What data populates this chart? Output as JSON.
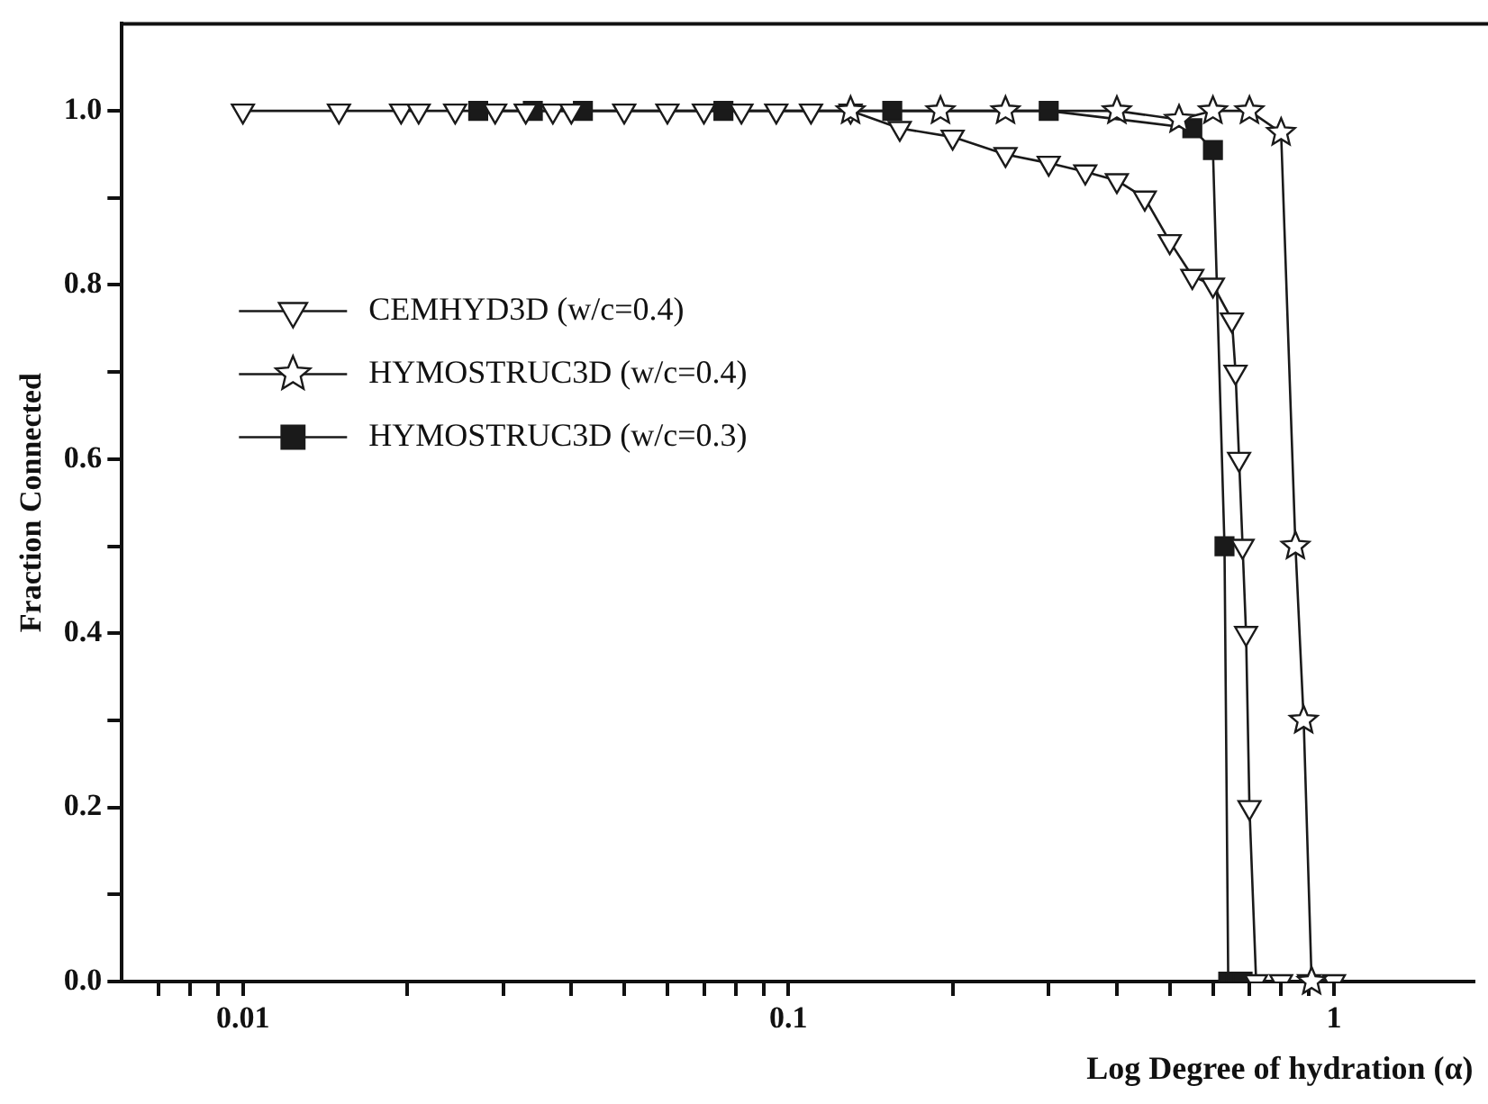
{
  "chart_data": {
    "type": "line",
    "xlabel": "Log Degree of hydration (α)",
    "ylabel": "Fraction Connected",
    "log": "x",
    "grid": false,
    "legend": "left",
    "line_style": "solid",
    "xlim": [
      0.006,
      1.8
    ],
    "ylim": [
      0,
      1.1
    ],
    "xticks": [
      {
        "value": 0.007,
        "label": null
      },
      {
        "value": 0.008,
        "label": null
      },
      {
        "value": 0.009,
        "label": null
      },
      0.01,
      {
        "value": 0.02,
        "label": null
      },
      {
        "value": 0.03,
        "label": null
      },
      {
        "value": 0.04,
        "label": null
      },
      {
        "value": 0.05,
        "label": null
      },
      {
        "value": 0.06,
        "label": null
      },
      {
        "value": 0.07,
        "label": null
      },
      {
        "value": 0.08,
        "label": null
      },
      {
        "value": 0.09,
        "label": null
      },
      0.1,
      {
        "value": 0.2,
        "label": null
      },
      {
        "value": 0.3,
        "label": null
      },
      {
        "value": 0.4,
        "label": null
      },
      {
        "value": 0.5,
        "label": null
      },
      {
        "value": 0.6,
        "label": null
      },
      {
        "value": 0.7,
        "label": null
      },
      {
        "value": 0.8,
        "label": null
      },
      {
        "value": 0.9,
        "label": null
      },
      1
    ],
    "yticks": [
      {
        "value": 0,
        "label": "0.0"
      },
      {
        "value": 0.1,
        "label": null
      },
      0.2,
      {
        "value": 0.3,
        "label": null
      },
      0.4,
      {
        "value": 0.5,
        "label": null
      },
      0.6,
      {
        "value": 0.7,
        "label": null
      },
      0.8,
      {
        "value": 0.9,
        "label": null
      },
      {
        "value": 1,
        "label": "1.0"
      }
    ],
    "series": [
      {
        "name": "CEMHYD3D (w/c=0.4)",
        "color": "#1a1a1a",
        "marker": "triangle",
        "x": [
          0.01,
          0.015,
          0.0195,
          0.021,
          0.0245,
          0.029,
          0.033,
          0.037,
          0.04,
          0.05,
          0.06,
          0.07,
          0.082,
          0.095,
          0.11,
          0.13,
          0.16,
          0.2,
          0.25,
          0.3,
          0.35,
          0.4,
          0.45,
          0.5,
          0.55,
          0.6,
          0.65,
          0.66,
          0.67,
          0.68,
          0.69,
          0.7,
          0.72,
          0.8,
          0.9,
          1.0
        ],
        "values": [
          1,
          1,
          1,
          1,
          1,
          1,
          1,
          1,
          1,
          1,
          1,
          1,
          1,
          1,
          1,
          1,
          0.98,
          0.97,
          0.95,
          0.94,
          0.93,
          0.92,
          0.9,
          0.85,
          0.81,
          0.8,
          0.76,
          0.7,
          0.6,
          0.5,
          0.4,
          0.2,
          0,
          0,
          0,
          0
        ]
      },
      {
        "name": "HYMOSTRUC3D (w/c=0.4)",
        "color": "#1a1a1a",
        "marker": "star",
        "x": [
          0.13,
          0.19,
          0.25,
          0.4,
          0.52,
          0.6,
          0.7,
          0.8,
          0.85,
          0.88,
          0.91
        ],
        "values": [
          1,
          1,
          1,
          1,
          0.99,
          1,
          1,
          0.975,
          0.5,
          0.3,
          0
        ]
      },
      {
        "name": "HYMOSTRUC3D (w/c=0.3)",
        "color": "#1a1a1a",
        "marker": "square",
        "x": [
          0.027,
          0.034,
          0.042,
          0.076,
          0.155,
          0.3,
          0.55,
          0.6,
          0.63,
          0.64,
          0.66,
          0.68
        ],
        "values": [
          1,
          1,
          1,
          1,
          1,
          1,
          0.98,
          0.955,
          0.5,
          0,
          0,
          0
        ]
      }
    ]
  }
}
